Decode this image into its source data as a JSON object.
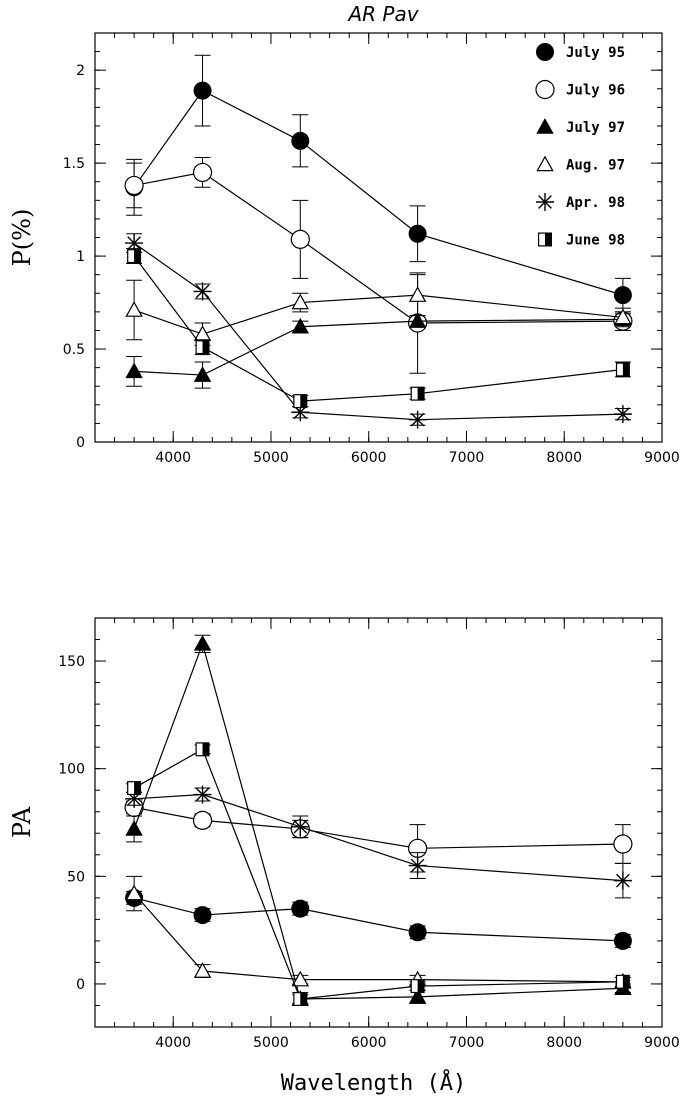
{
  "chart_data": [
    {
      "type": "line",
      "title": "AR Pav",
      "xlabel": "",
      "ylabel": "P(%)",
      "xlim": [
        3200,
        9000
      ],
      "ylim": [
        0,
        2.2
      ],
      "x_ticks": [
        4000,
        5000,
        6000,
        7000,
        8000,
        9000
      ],
      "y_ticks": [
        0,
        0.5,
        1,
        1.5,
        2
      ],
      "x_tick_labels": [
        "4000",
        "5000",
        "6000",
        "7000",
        "8000",
        "9000"
      ],
      "y_tick_labels": [
        "0",
        "0.5",
        "1",
        "1.5",
        "2"
      ],
      "legend": "top-right",
      "series": [
        {
          "name": "July 95",
          "marker": "filled-circle",
          "x": [
            3600,
            4300,
            5300,
            6500,
            8600
          ],
          "y": [
            1.37,
            1.89,
            1.62,
            1.12,
            0.79
          ],
          "err": [
            0.15,
            0.19,
            0.14,
            0.15,
            0.09
          ]
        },
        {
          "name": "July 96",
          "marker": "open-circle",
          "x": [
            3600,
            4300,
            5300,
            6500,
            8600
          ],
          "y": [
            1.38,
            1.45,
            1.09,
            0.64,
            0.65
          ],
          "err": [
            0.12,
            0.08,
            0.21,
            0.27,
            0.05
          ]
        },
        {
          "name": "July 97",
          "marker": "filled-triangle",
          "x": [
            3600,
            4300,
            5300,
            6500,
            8600
          ],
          "y": [
            0.38,
            0.36,
            0.62,
            0.65,
            0.66
          ],
          "err": [
            0.08,
            0.07,
            0.03,
            0.03,
            0.03
          ]
        },
        {
          "name": "Aug. 97",
          "marker": "open-triangle",
          "x": [
            3600,
            4300,
            5300,
            6500,
            8600
          ],
          "y": [
            0.71,
            0.58,
            0.75,
            0.79,
            0.67
          ],
          "err": [
            0.16,
            0.06,
            0.05,
            0.11,
            0.05
          ]
        },
        {
          "name": "Apr. 98",
          "marker": "asterisk",
          "x": [
            3600,
            4300,
            5300,
            6500,
            8600
          ],
          "y": [
            1.07,
            0.81,
            0.16,
            0.12,
            0.15
          ],
          "err": [
            0.05,
            0.04,
            0.03,
            0.03,
            0.03
          ]
        },
        {
          "name": "June 98",
          "marker": "half-square",
          "x": [
            3600,
            4300,
            5300,
            6500,
            8600
          ],
          "y": [
            1.0,
            0.51,
            0.22,
            0.26,
            0.39
          ],
          "err": [
            0.04,
            0.04,
            0.03,
            0.03,
            0.04
          ]
        }
      ]
    },
    {
      "type": "line",
      "title": "",
      "xlabel": "Wavelength (Å)",
      "ylabel": "PA",
      "xlim": [
        3200,
        9000
      ],
      "ylim": [
        -20,
        170
      ],
      "x_ticks": [
        4000,
        5000,
        6000,
        7000,
        8000,
        9000
      ],
      "y_ticks": [
        0,
        50,
        100,
        150
      ],
      "x_tick_labels": [
        "4000",
        "5000",
        "6000",
        "7000",
        "8000",
        "9000"
      ],
      "y_tick_labels": [
        "0",
        "50",
        "100",
        "150"
      ],
      "legend": "none",
      "series": [
        {
          "marker": "filled-circle",
          "x": [
            3600,
            4300,
            5300,
            6500,
            8600
          ],
          "y": [
            40,
            32,
            35,
            24,
            20
          ],
          "err": [
            3,
            3,
            3,
            3,
            3
          ]
        },
        {
          "marker": "open-circle",
          "x": [
            3600,
            4300,
            5300,
            6500,
            8600
          ],
          "y": [
            82,
            76,
            72,
            63,
            65
          ],
          "err": [
            3,
            3,
            4,
            11,
            9
          ]
        },
        {
          "marker": "filled-triangle",
          "x": [
            3600,
            4300,
            5300,
            6500,
            8600
          ],
          "y": [
            72,
            158,
            -7,
            -6,
            -2
          ],
          "err": [
            6,
            4,
            3,
            3,
            2
          ]
        },
        {
          "marker": "open-triangle",
          "x": [
            3600,
            4300,
            5300,
            6500,
            8600
          ],
          "y": [
            42,
            6,
            2,
            2,
            1
          ],
          "err": [
            8,
            3,
            2,
            2,
            2
          ]
        },
        {
          "marker": "asterisk",
          "x": [
            3600,
            4300,
            5300,
            6500,
            8600
          ],
          "y": [
            86,
            88,
            73,
            55,
            48
          ],
          "err": [
            3,
            3,
            5,
            6,
            8
          ]
        },
        {
          "marker": "half-square",
          "x": [
            3600,
            4300,
            5300,
            6500,
            8600
          ],
          "y": [
            91,
            109,
            -7,
            -1,
            1
          ],
          "err": [
            2,
            2,
            2,
            2,
            2
          ]
        }
      ]
    }
  ]
}
